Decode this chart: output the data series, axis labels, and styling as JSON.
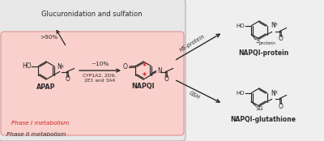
{
  "fig_width": 4.0,
  "fig_height": 1.74,
  "dpi": 100,
  "bg_color": "#efefef",
  "phase1_box_color": "#f9d0cb",
  "phase2_box_color": "#e5e5e5",
  "title": "Glucuronidation and sulfation",
  "phase1_label": "Phase I metabolism",
  "phase2_label": "Phase II metabolism",
  "apap_label": "APAP",
  "napqi_label": "NAPQI",
  "napqi_protein_label": "NAPQI-protein",
  "napqi_glut_label": "NAPQI-glutathione",
  "arrow1_pct": ">90%",
  "arrow2_pct": "~10%",
  "cyp_text": "CYP1A2, 2D9,\n2E1 and 3A4",
  "hs_protein": "HS-protein",
  "gsh": "GSH",
  "text_color": "#2a2a2a",
  "red_color": "#cc2222",
  "arrow_color": "#2a2a2a"
}
